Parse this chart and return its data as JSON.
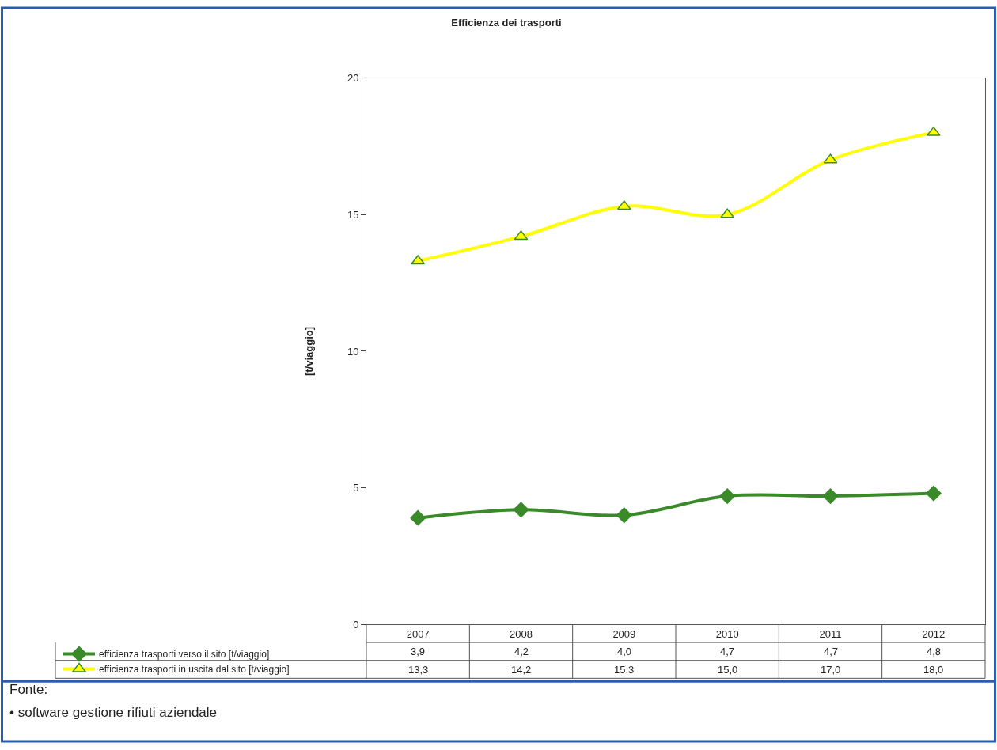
{
  "chart_data": {
    "type": "line",
    "title": "Efficienza dei trasporti",
    "ylabel": "[t/viaggio]",
    "categories": [
      "2007",
      "2008",
      "2009",
      "2010",
      "2011",
      "2012"
    ],
    "series": [
      {
        "name": "efficienza trasporti verso il sito [t/viaggio]",
        "color": "#3a8a2a",
        "marker": "diamond",
        "values": [
          3.9,
          4.2,
          4.0,
          4.7,
          4.7,
          4.8
        ],
        "value_labels": [
          "3,9",
          "4,2",
          "4,0",
          "4,7",
          "4,7",
          "4,8"
        ]
      },
      {
        "name": "efficienza trasporti in uscita dal sito [t/viaggio]",
        "color": "#ffff00",
        "marker": "triangle",
        "values": [
          13.3,
          14.2,
          15.3,
          15.0,
          17.0,
          18.0
        ],
        "value_labels": [
          "13,3",
          "14,2",
          "15,3",
          "15,0",
          "17,0",
          "18,0"
        ]
      }
    ],
    "ylim": [
      0,
      20
    ],
    "yticks": [
      0,
      5,
      10,
      15,
      20
    ],
    "grid": false,
    "legend": "bottom left",
    "annotations": [
      "Fonte:",
      "• software gestione rifiuti aziendale"
    ]
  }
}
